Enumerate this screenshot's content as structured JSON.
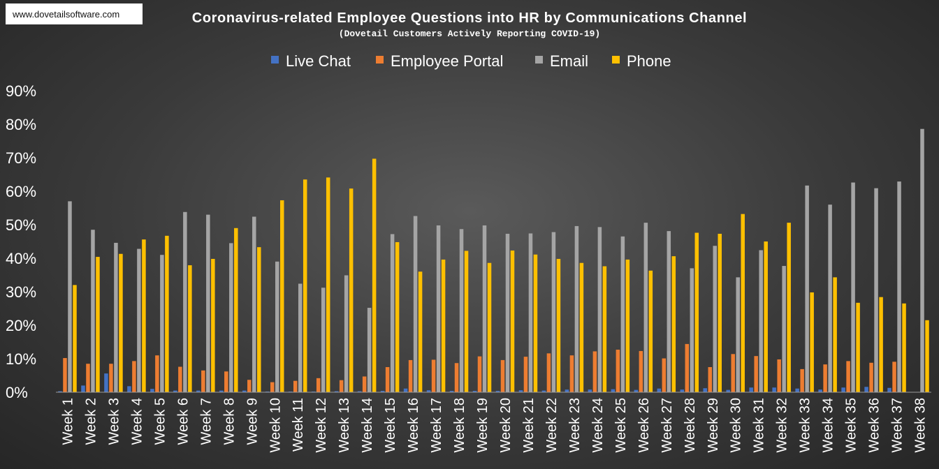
{
  "source_label": "www.dovetailsoftware.com",
  "chart_data": {
    "type": "bar",
    "title": "Coronavirus-related Employee Questions into HR by Communications Channel",
    "subtitle": "(Dovetail Customers Actively Reporting COVID-19)",
    "legend_position": "top",
    "ylim": [
      0,
      90
    ],
    "yticks": [
      "0%",
      "10%",
      "20%",
      "30%",
      "40%",
      "50%",
      "60%",
      "70%",
      "80%",
      "90%"
    ],
    "grid": false,
    "categories": [
      "Week 1",
      "Week 2",
      "Week 3",
      "Week 4",
      "Week 5",
      "Week 6",
      "Week 7",
      "Week 8",
      "Week 9",
      "Week 10",
      "Week 11",
      "Week 12",
      "Week 13",
      "Week 14",
      "Week 15",
      "Week 16",
      "Week 17",
      "Week 18",
      "Week 19",
      "Week 20",
      "Week 21",
      "Week 22",
      "Week 23",
      "Week 24",
      "Week 25",
      "Week 26",
      "Week 27",
      "Week 28",
      "Week 29",
      "Week 30",
      "Week 31",
      "Week 32",
      "Week 33",
      "Week 34",
      "Week 35",
      "Week 36",
      "Week 37",
      "Week 38"
    ],
    "series": [
      {
        "name": "Live Chat",
        "color": "#4472c4",
        "values": [
          0.3,
          2.0,
          5.6,
          1.8,
          1.0,
          0.5,
          0.5,
          0.5,
          0.5,
          0.2,
          0.2,
          0.2,
          0.3,
          0.3,
          0.4,
          1.1,
          0.6,
          0.4,
          0.4,
          0.4,
          0.6,
          0.5,
          0.8,
          0.8,
          0.9,
          0.7,
          1.1,
          0.8,
          1.2,
          0.7,
          1.4,
          1.4,
          1.1,
          0.8,
          1.4,
          1.6,
          1.3,
          0.0
        ]
      },
      {
        "name": "Employee Portal",
        "color": "#ed7d31",
        "values": [
          10.2,
          8.5,
          8.5,
          9.3,
          11.0,
          7.6,
          6.5,
          6.2,
          3.7,
          3.0,
          3.4,
          4.2,
          3.6,
          4.7,
          7.5,
          9.6,
          9.7,
          8.7,
          10.7,
          9.6,
          10.6,
          11.6,
          11.0,
          12.2,
          12.7,
          12.3,
          10.1,
          14.4,
          7.5,
          11.4,
          10.8,
          9.8,
          6.9,
          8.3,
          9.3,
          8.8,
          9.1,
          0.0
        ]
      },
      {
        "name": "Email",
        "color": "#a5a5a5",
        "values": [
          57.0,
          48.5,
          44.6,
          42.8,
          41.0,
          53.8,
          53.0,
          44.5,
          52.4,
          39.0,
          32.4,
          31.2,
          34.9,
          25.2,
          47.2,
          52.6,
          49.8,
          48.7,
          49.8,
          47.3,
          47.4,
          47.8,
          49.6,
          49.3,
          46.5,
          50.6,
          48.1,
          37.0,
          43.7,
          34.3,
          42.4,
          37.7,
          61.7,
          56.0,
          62.6,
          60.9,
          62.9,
          78.6
        ]
      },
      {
        "name": "Phone",
        "color": "#ffc000",
        "values": [
          32.0,
          40.4,
          41.3,
          45.6,
          46.7,
          37.9,
          39.8,
          49.0,
          43.3,
          57.3,
          63.5,
          64.1,
          60.8,
          69.7,
          44.8,
          36.0,
          39.6,
          42.2,
          38.6,
          42.3,
          41.1,
          39.8,
          38.6,
          37.6,
          39.6,
          36.3,
          40.6,
          47.6,
          47.3,
          53.2,
          45.0,
          50.6,
          29.8,
          34.3,
          26.7,
          28.4,
          26.5,
          21.5
        ]
      }
    ]
  }
}
